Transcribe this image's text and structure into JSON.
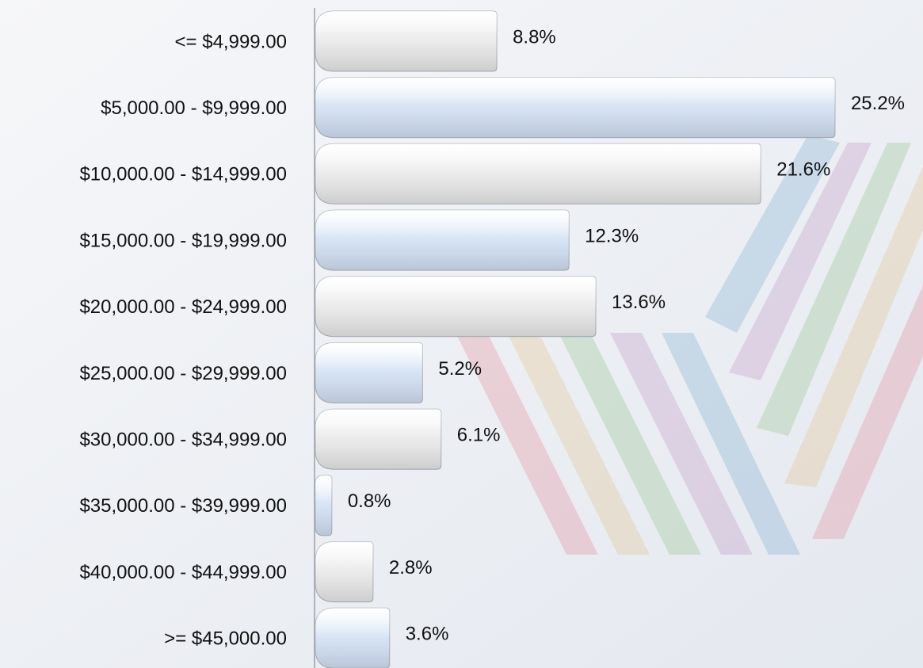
{
  "chart_data": {
    "type": "hbar",
    "categories": [
      "<= $4,999.00",
      "$5,000.00 - $9,999.00",
      "$10,000.00 - $14,999.00",
      "$15,000.00 - $19,999.00",
      "$20,000.00 - $24,999.00",
      "$25,000.00 - $29,999.00",
      "$30,000.00 - $34,999.00",
      "$35,000.00 - $39,999.00",
      "$40,000.00 - $44,999.00",
      ">= $45,000.00"
    ],
    "values": [
      8.8,
      25.2,
      21.6,
      12.3,
      13.6,
      5.2,
      6.1,
      0.8,
      2.8,
      3.6
    ],
    "value_labels": [
      "8.8%",
      "25.2%",
      "21.6%",
      "12.3%",
      "13.6%",
      "5.2%",
      "6.1%",
      "0.8%",
      "2.8%",
      "3.6%"
    ],
    "colors": [
      "#e9e9ea",
      "#d3e1f4",
      "#e9e9ea",
      "#d3e1f4",
      "#e9e9ea",
      "#d3e1f4",
      "#e9e9ea",
      "#d3e1f4",
      "#e9e9ea",
      "#d3e1f4"
    ]
  }
}
